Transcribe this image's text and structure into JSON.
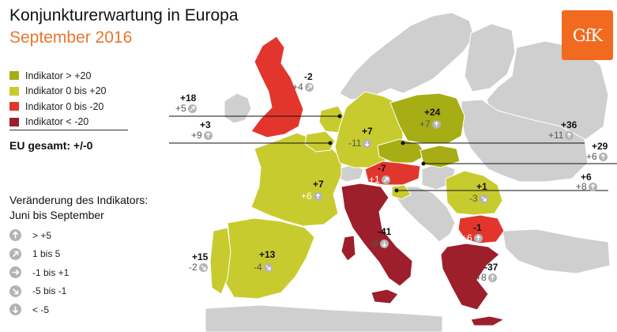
{
  "header": {
    "title": "Konjunkturerwartung in Europa",
    "subtitle": "September 2016",
    "logo": "GfK"
  },
  "colors": {
    "above_20": "#a7ad14",
    "zero_to_20": "#c8cb2e",
    "zero_to_minus_20": "#e2362d",
    "below_minus_20": "#9c1f2b",
    "other_country": "#cfcfcf",
    "change_icon": "#b3b3b3",
    "subtitle": "#e8772e",
    "logo": "#f26a1f"
  },
  "legend": [
    {
      "label": "Indikator > +20",
      "color": "#a7ad14"
    },
    {
      "label": "Indikator 0 bis +20",
      "color": "#c8cb2e"
    },
    {
      "label": "Indikator 0 bis -20",
      "color": "#e2362d"
    },
    {
      "label": "Indikator < -20",
      "color": "#9c1f2b"
    }
  ],
  "eu_total": "EU gesamt: +/-0",
  "change_legend": {
    "title_line1": "Veränderung des Indikators:",
    "title_line2": "Juni bis September",
    "items": [
      {
        "label": "> +5",
        "icon": "arrow-up-icon"
      },
      {
        "label": "1 bis 5",
        "icon": "arrow-up-right-icon"
      },
      {
        "label": "-1 bis +1",
        "icon": "arrow-right-icon"
      },
      {
        "label": "-5 bis -1",
        "icon": "arrow-down-right-icon"
      },
      {
        "label": "< -5",
        "icon": "arrow-down-icon"
      }
    ]
  },
  "countries": [
    {
      "id": "uk",
      "value": "-2",
      "change": "+4",
      "icon": "arrow-up-right-icon"
    },
    {
      "id": "belgium",
      "value": "+18",
      "change": "+5",
      "icon": "arrow-up-right-icon"
    },
    {
      "id": "netherlands",
      "value": "+3",
      "change": "+9",
      "icon": "arrow-up-icon"
    },
    {
      "id": "germany",
      "value": "+7",
      "change": "-11",
      "icon": "arrow-down-icon"
    },
    {
      "id": "poland",
      "value": "+24",
      "change": "+7",
      "icon": "arrow-up-icon"
    },
    {
      "id": "czech",
      "value": "+36",
      "change": "+11",
      "icon": "arrow-up-icon"
    },
    {
      "id": "slovakia",
      "value": "+29",
      "change": "+6",
      "icon": "arrow-up-icon"
    },
    {
      "id": "austria",
      "value": "-7",
      "change": "+1",
      "icon": "arrow-up-right-icon"
    },
    {
      "id": "slovenia",
      "value": "+6",
      "change": "+8",
      "icon": "arrow-up-icon"
    },
    {
      "id": "france",
      "value": "+7",
      "change": "+6",
      "icon": "arrow-up-icon"
    },
    {
      "id": "romania",
      "value": "+1",
      "change": "-3",
      "icon": "arrow-down-right-icon"
    },
    {
      "id": "bulgaria",
      "value": "-1",
      "change": "+6",
      "icon": "arrow-up-icon"
    },
    {
      "id": "italy",
      "value": "-41",
      "change": "-9",
      "icon": "arrow-down-icon"
    },
    {
      "id": "portugal",
      "value": "+15",
      "change": "-2",
      "icon": "arrow-down-right-icon"
    },
    {
      "id": "spain",
      "value": "+13",
      "change": "-4",
      "icon": "arrow-down-right-icon"
    },
    {
      "id": "greece",
      "value": "-37",
      "change": "+8",
      "icon": "arrow-up-icon"
    }
  ]
}
